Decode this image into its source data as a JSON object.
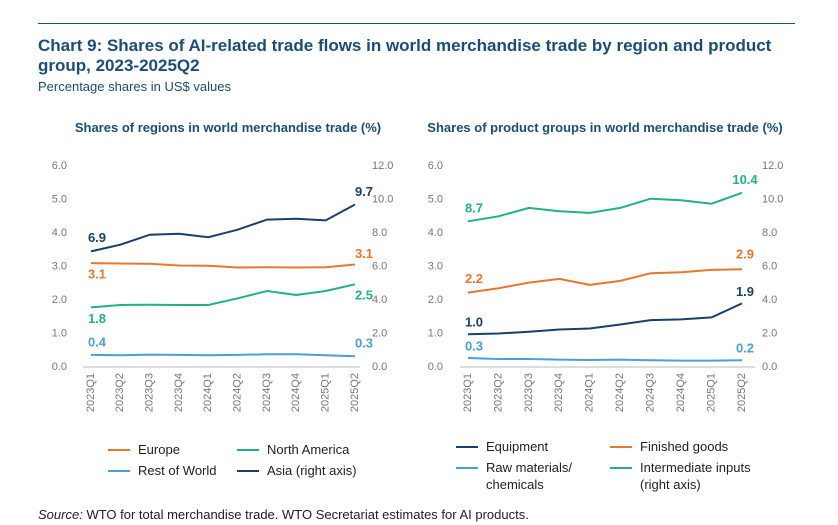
{
  "title": "Chart 9: Shares of AI-related trade flows in world merchandise trade by region and product group, 2023-2025Q2",
  "subtitle": "Percentage shares in US$ values",
  "source": {
    "label": "Source:",
    "text": "WTO for total merchandise trade. WTO Secretariat estimates for AI products."
  },
  "chart_data": [
    {
      "type": "line",
      "title": "Shares of regions in world merchandise trade (%)",
      "categories": [
        "2023Q1",
        "2023Q2",
        "2023Q3",
        "2023Q4",
        "2024Q1",
        "2024Q2",
        "2024Q3",
        "2024Q4",
        "2025Q1",
        "2025Q2"
      ],
      "ylim": [
        0,
        6
      ],
      "yticks": [
        {
          "value": 0,
          "label": "0.0"
        },
        {
          "value": 1,
          "label": "1.0"
        },
        {
          "value": 2,
          "label": "2.0"
        },
        {
          "value": 3,
          "label": "3.0"
        },
        {
          "value": 4,
          "label": "4.0"
        },
        {
          "value": 5,
          "label": "5.0"
        },
        {
          "value": 6,
          "label": "6.0"
        }
      ],
      "y2lim": [
        0,
        12
      ],
      "y2ticks": [
        {
          "value": 0,
          "label": "0.0"
        },
        {
          "value": 2,
          "label": "2.0"
        },
        {
          "value": 4,
          "label": "4.0"
        },
        {
          "value": 6,
          "label": "6.0"
        },
        {
          "value": 8,
          "label": "8.0"
        },
        {
          "value": 10,
          "label": "10.0"
        },
        {
          "value": 12,
          "label": "12.0"
        }
      ],
      "series": [
        {
          "name": "Europe",
          "color": "#e8772e",
          "values": [
            3.1,
            3.09,
            3.08,
            3.03,
            3.02,
            2.97,
            2.98,
            2.97,
            2.98,
            3.06
          ],
          "value_labels": [
            "3.1",
            null,
            null,
            null,
            null,
            null,
            null,
            null,
            null,
            "3.1"
          ]
        },
        {
          "name": "North America",
          "color": "#22b08b",
          "values": [
            1.78,
            1.85,
            1.86,
            1.85,
            1.85,
            2.05,
            2.27,
            2.15,
            2.27,
            2.47
          ],
          "value_labels": [
            "1.8",
            null,
            null,
            null,
            null,
            null,
            null,
            null,
            null,
            "2.5"
          ]
        },
        {
          "name": "Rest of World",
          "color": "#4ba0d8",
          "values": [
            0.36,
            0.35,
            0.37,
            0.36,
            0.35,
            0.36,
            0.38,
            0.38,
            0.35,
            0.32
          ],
          "value_labels": [
            "0.4",
            null,
            null,
            null,
            null,
            null,
            null,
            null,
            null,
            "0.3"
          ]
        },
        {
          "name": "Asia (right axis)",
          "color": "#17416b",
          "axis": "y2",
          "values": [
            6.9,
            7.3,
            7.9,
            7.95,
            7.75,
            8.2,
            8.8,
            8.85,
            8.75,
            9.7
          ],
          "value_labels": [
            "6.9",
            null,
            null,
            null,
            null,
            null,
            null,
            null,
            null,
            "9.7"
          ]
        }
      ]
    },
    {
      "type": "line",
      "title": "Shares of product groups in world merchandise trade (%)",
      "categories": [
        "2023Q1",
        "2023Q2",
        "2023Q3",
        "2023Q4",
        "2024Q1",
        "2024Q2",
        "2024Q3",
        "2024Q4",
        "2025Q1",
        "2025Q2"
      ],
      "ylim": [
        0,
        6
      ],
      "yticks": [
        {
          "value": 0,
          "label": "0.0"
        },
        {
          "value": 1,
          "label": "1.0"
        },
        {
          "value": 2,
          "label": "2.0"
        },
        {
          "value": 3,
          "label": "3.0"
        },
        {
          "value": 4,
          "label": "4.0"
        },
        {
          "value": 5,
          "label": "5.0"
        },
        {
          "value": 6,
          "label": "6.0"
        }
      ],
      "y2lim": [
        0,
        12
      ],
      "y2ticks": [
        {
          "value": 0,
          "label": "0.0"
        },
        {
          "value": 2,
          "label": "2.0"
        },
        {
          "value": 4,
          "label": "4.0"
        },
        {
          "value": 6,
          "label": "6.0"
        },
        {
          "value": 8,
          "label": "8.0"
        },
        {
          "value": 10,
          "label": "10.0"
        },
        {
          "value": 12,
          "label": "12.0"
        }
      ],
      "series": [
        {
          "name": "Equipment",
          "color": "#17416b",
          "values": [
            0.98,
            1.0,
            1.05,
            1.12,
            1.15,
            1.27,
            1.4,
            1.42,
            1.48,
            1.9
          ],
          "value_labels": [
            "1.0",
            null,
            null,
            null,
            null,
            null,
            null,
            null,
            null,
            "1.9"
          ]
        },
        {
          "name": "Finished goods",
          "color": "#e8772e",
          "values": [
            2.22,
            2.35,
            2.52,
            2.63,
            2.45,
            2.57,
            2.8,
            2.83,
            2.9,
            2.92
          ],
          "value_labels": [
            "2.2",
            null,
            null,
            null,
            null,
            null,
            null,
            null,
            null,
            "2.9"
          ]
        },
        {
          "name": "Raw materials/ chemicals",
          "color": "#4ba0d8",
          "values": [
            0.27,
            0.24,
            0.24,
            0.22,
            0.21,
            0.22,
            0.2,
            0.19,
            0.19,
            0.2
          ],
          "value_labels": [
            "0.3",
            null,
            null,
            null,
            null,
            null,
            null,
            null,
            null,
            "0.2"
          ]
        },
        {
          "name": "Intermediate inputs (right axis)",
          "color": "#22b08b",
          "axis": "y2",
          "values": [
            8.7,
            9.0,
            9.5,
            9.3,
            9.2,
            9.5,
            10.05,
            9.95,
            9.75,
            10.4
          ],
          "value_labels": [
            "8.7",
            null,
            null,
            null,
            null,
            null,
            null,
            null,
            null,
            "10.4"
          ]
        }
      ]
    }
  ]
}
